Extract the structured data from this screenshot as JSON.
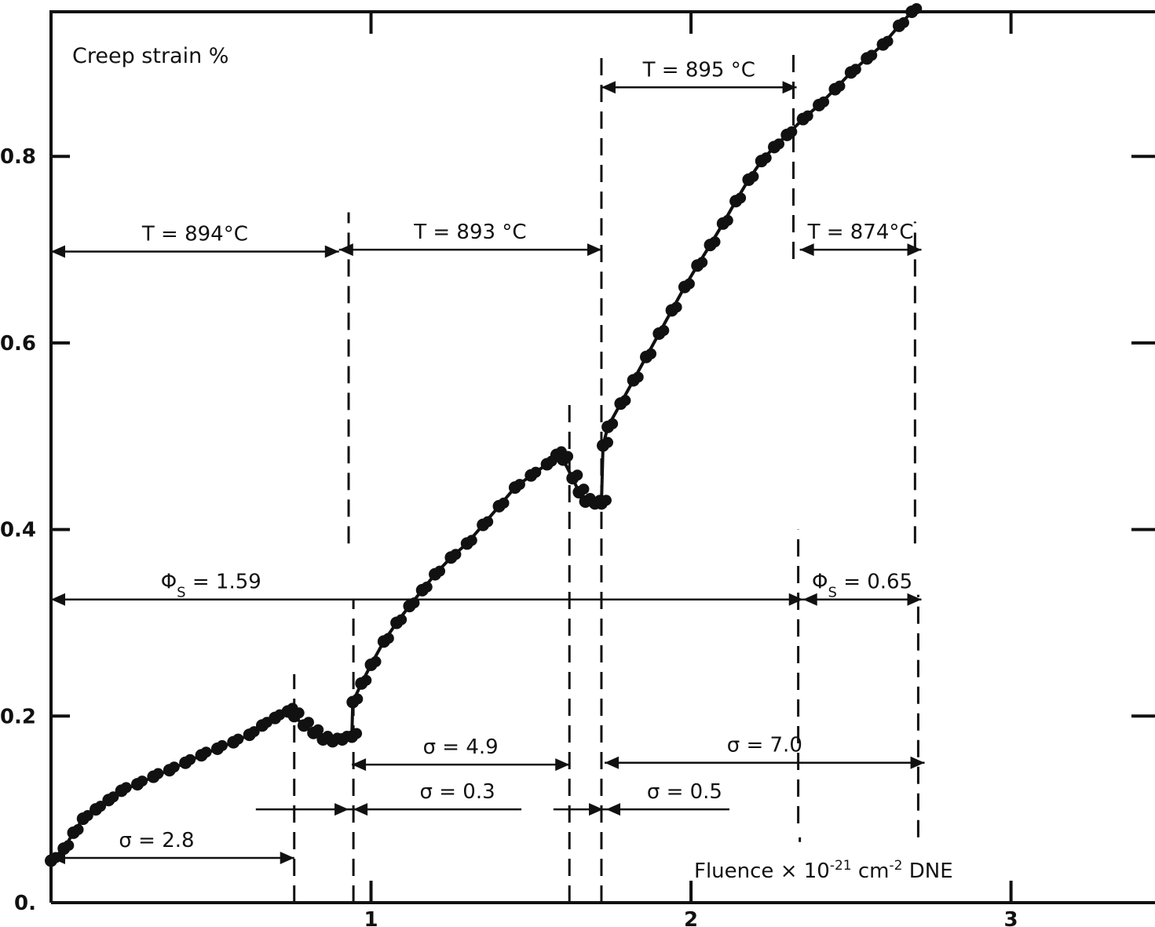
{
  "chart_data": {
    "type": "scatter",
    "title": "Creep strain %",
    "xlabel": "Fluence × 10",
    "xlabel_exp": "-21",
    "xlabel_unit": " cm",
    "xlabel_unit_exp": "-2",
    "xlabel_tail": " DNE",
    "xlim": [
      0,
      3.45
    ],
    "ylim": [
      0,
      0.955
    ],
    "x_ticks": [
      {
        "value": 1,
        "label": "1"
      },
      {
        "value": 2,
        "label": "2"
      },
      {
        "value": 3,
        "label": "3"
      }
    ],
    "y_ticks": [
      {
        "value": 0,
        "label": "0."
      },
      {
        "value": 0.2,
        "label": "0.2"
      },
      {
        "value": 0.4,
        "label": "0.4"
      },
      {
        "value": 0.6,
        "label": "0.6"
      },
      {
        "value": 0.8,
        "label": "0.8"
      }
    ],
    "grid": false,
    "series": [
      {
        "values": [
          [
            0.0,
            0.045
          ],
          [
            0.04,
            0.058
          ],
          [
            0.07,
            0.075
          ],
          [
            0.1,
            0.09
          ],
          [
            0.14,
            0.1
          ],
          [
            0.18,
            0.11
          ],
          [
            0.22,
            0.12
          ],
          [
            0.27,
            0.127
          ],
          [
            0.32,
            0.135
          ],
          [
            0.37,
            0.142
          ],
          [
            0.42,
            0.15
          ],
          [
            0.47,
            0.158
          ],
          [
            0.52,
            0.165
          ],
          [
            0.57,
            0.172
          ],
          [
            0.62,
            0.18
          ],
          [
            0.66,
            0.19
          ],
          [
            0.7,
            0.198
          ],
          [
            0.74,
            0.205
          ],
          [
            0.76,
            0.2
          ],
          [
            0.79,
            0.19
          ],
          [
            0.82,
            0.182
          ],
          [
            0.85,
            0.175
          ],
          [
            0.88,
            0.173
          ],
          [
            0.91,
            0.175
          ],
          [
            0.94,
            0.178
          ],
          [
            0.943,
            0.215
          ],
          [
            0.97,
            0.235
          ],
          [
            1.0,
            0.255
          ],
          [
            1.04,
            0.28
          ],
          [
            1.08,
            0.3
          ],
          [
            1.12,
            0.318
          ],
          [
            1.16,
            0.335
          ],
          [
            1.2,
            0.352
          ],
          [
            1.25,
            0.37
          ],
          [
            1.3,
            0.385
          ],
          [
            1.35,
            0.405
          ],
          [
            1.4,
            0.425
          ],
          [
            1.45,
            0.445
          ],
          [
            1.5,
            0.458
          ],
          [
            1.55,
            0.47
          ],
          [
            1.58,
            0.48
          ],
          [
            1.6,
            0.475
          ],
          [
            1.63,
            0.455
          ],
          [
            1.65,
            0.44
          ],
          [
            1.67,
            0.43
          ],
          [
            1.7,
            0.428
          ],
          [
            1.72,
            0.428
          ],
          [
            1.725,
            0.49
          ],
          [
            1.74,
            0.51
          ],
          [
            1.78,
            0.535
          ],
          [
            1.82,
            0.56
          ],
          [
            1.86,
            0.585
          ],
          [
            1.9,
            0.61
          ],
          [
            1.94,
            0.635
          ],
          [
            1.98,
            0.66
          ],
          [
            2.02,
            0.683
          ],
          [
            2.06,
            0.705
          ],
          [
            2.1,
            0.728
          ],
          [
            2.14,
            0.752
          ],
          [
            2.18,
            0.775
          ],
          [
            2.22,
            0.795
          ],
          [
            2.26,
            0.81
          ],
          [
            2.3,
            0.823
          ],
          [
            2.35,
            0.84
          ],
          [
            2.4,
            0.855
          ],
          [
            2.45,
            0.872
          ],
          [
            2.5,
            0.89
          ],
          [
            2.55,
            0.905
          ],
          [
            2.6,
            0.92
          ],
          [
            2.65,
            0.94
          ],
          [
            2.69,
            0.955
          ]
        ]
      }
    ],
    "annotations": {
      "temperature": [
        {
          "label": "T = 894°C",
          "x_start": 0.0,
          "x_end": 0.9
        },
        {
          "label": "T = 893 °C",
          "x_start": 0.9,
          "x_end": 1.72
        },
        {
          "label": "T = 895 °C",
          "x_start": 1.72,
          "x_end": 2.33
        },
        {
          "label": "T = 874°C",
          "x_start": 2.34,
          "x_end": 2.72
        }
      ],
      "phi": [
        {
          "label": "Φ",
          "sub": "S",
          "value": "= 1.59",
          "x_start": 0.0,
          "x_end": 2.35
        },
        {
          "label": "Φ",
          "sub": "S",
          "value": "= 0.65",
          "x_start": 2.35,
          "x_end": 2.72
        }
      ],
      "stress": [
        {
          "label": "σ = 2.8",
          "x_start": 0.0,
          "x_end": 0.76
        },
        {
          "label": "σ = 4.9",
          "x_start": 0.94,
          "x_end": 1.62
        },
        {
          "label": "σ = 7.0",
          "x_start": 1.73,
          "x_end": 2.73
        },
        {
          "label": "σ = 0.3",
          "x_start": 0.94,
          "x_end": 1.62
        },
        {
          "label": "σ = 0.5",
          "x_start": 1.73,
          "x_end": 2.73
        }
      ]
    }
  }
}
